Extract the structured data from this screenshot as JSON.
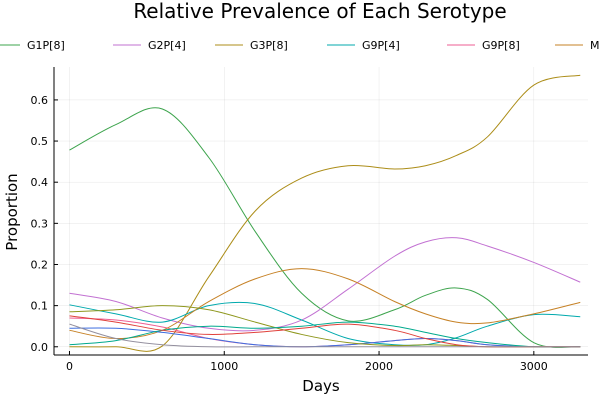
{
  "chart_data": {
    "type": "line",
    "title": "Relative Prevalence of Each Serotype",
    "xlabel": "Days",
    "ylabel": "Proportion",
    "xlim": [
      -100,
      3350
    ],
    "ylim": [
      -0.02,
      0.68
    ],
    "xticks": [
      0,
      1000,
      2000,
      3000
    ],
    "yticks": [
      0.0,
      0.1,
      0.2,
      0.3,
      0.4,
      0.5,
      0.6
    ],
    "grid": true,
    "legend": "top, horizontal",
    "series": [
      {
        "name": "G1P[8]",
        "color": "#3da44d",
        "points": [
          [
            0,
            0.478
          ],
          [
            300,
            0.54
          ],
          [
            600,
            0.578
          ],
          [
            900,
            0.46
          ],
          [
            1200,
            0.28
          ],
          [
            1500,
            0.13
          ],
          [
            1800,
            0.063
          ],
          [
            2100,
            0.09
          ],
          [
            2300,
            0.125
          ],
          [
            2500,
            0.143
          ],
          [
            2700,
            0.115
          ],
          [
            3000,
            0.01
          ],
          [
            3300,
            0.0
          ]
        ]
      },
      {
        "name": "G2P[4]",
        "color": "#c271d2",
        "points": [
          [
            0,
            0.13
          ],
          [
            300,
            0.11
          ],
          [
            600,
            0.07
          ],
          [
            900,
            0.045
          ],
          [
            1200,
            0.04
          ],
          [
            1500,
            0.065
          ],
          [
            1800,
            0.14
          ],
          [
            2100,
            0.22
          ],
          [
            2300,
            0.255
          ],
          [
            2500,
            0.265
          ],
          [
            2700,
            0.245
          ],
          [
            3000,
            0.205
          ],
          [
            3300,
            0.157
          ]
        ]
      },
      {
        "name": "G3P[8]",
        "color": "#ac8d18",
        "points": [
          [
            0,
            0.0
          ],
          [
            300,
            0.0
          ],
          [
            600,
            0.002
          ],
          [
            900,
            0.17
          ],
          [
            1200,
            0.33
          ],
          [
            1500,
            0.41
          ],
          [
            1800,
            0.44
          ],
          [
            2100,
            0.432
          ],
          [
            2300,
            0.44
          ],
          [
            2500,
            0.465
          ],
          [
            2700,
            0.51
          ],
          [
            3000,
            0.636
          ],
          [
            3300,
            0.66
          ]
        ]
      },
      {
        "name": "G9P[4]",
        "color": "#00a9ad",
        "points": [
          [
            0,
            0.102
          ],
          [
            300,
            0.08
          ],
          [
            600,
            0.06
          ],
          [
            900,
            0.1
          ],
          [
            1200,
            0.105
          ],
          [
            1500,
            0.065
          ],
          [
            1800,
            0.02
          ],
          [
            2100,
            0.005
          ],
          [
            2300,
            0.005
          ],
          [
            2500,
            0.022
          ],
          [
            2700,
            0.05
          ],
          [
            3000,
            0.078
          ],
          [
            3300,
            0.073
          ]
        ]
      },
      {
        "name": "G9P[8]",
        "color": "#ed5e93",
        "points": [
          [
            0,
            0.07
          ],
          [
            300,
            0.065
          ],
          [
            600,
            0.048
          ],
          [
            900,
            0.02
          ],
          [
            1200,
            0.005
          ],
          [
            1500,
            0.0
          ],
          [
            1800,
            0.005
          ],
          [
            2100,
            0.015
          ],
          [
            2300,
            0.02
          ],
          [
            2500,
            0.015
          ],
          [
            2700,
            0.005
          ],
          [
            3000,
            0.0
          ],
          [
            3300,
            0.0
          ]
        ]
      },
      {
        "name": "M",
        "color": "#c68125",
        "points": [
          [
            0,
            0.04
          ],
          [
            300,
            0.02
          ],
          [
            600,
            0.04
          ],
          [
            900,
            0.11
          ],
          [
            1200,
            0.165
          ],
          [
            1500,
            0.19
          ],
          [
            1800,
            0.165
          ],
          [
            2100,
            0.11
          ],
          [
            2300,
            0.08
          ],
          [
            2500,
            0.06
          ],
          [
            2700,
            0.058
          ],
          [
            3000,
            0.08
          ],
          [
            3300,
            0.108
          ]
        ]
      },
      {
        "name": "",
        "color": "#3e6ee0",
        "points": [
          [
            0,
            0.045
          ],
          [
            300,
            0.045
          ],
          [
            600,
            0.035
          ],
          [
            900,
            0.02
          ],
          [
            1200,
            0.005
          ],
          [
            1500,
            0.0
          ],
          [
            1800,
            0.005
          ],
          [
            2100,
            0.015
          ],
          [
            2300,
            0.02
          ],
          [
            2500,
            0.015
          ],
          [
            2700,
            0.005
          ],
          [
            3000,
            0.0
          ],
          [
            3300,
            0.0
          ]
        ]
      },
      {
        "name": "",
        "color": "#8e971d",
        "points": [
          [
            0,
            0.085
          ],
          [
            300,
            0.09
          ],
          [
            600,
            0.1
          ],
          [
            900,
            0.09
          ],
          [
            1200,
            0.06
          ],
          [
            1500,
            0.03
          ],
          [
            1800,
            0.01
          ],
          [
            2100,
            0.003
          ],
          [
            2300,
            0.005
          ],
          [
            2500,
            0.003
          ],
          [
            2700,
            0.0
          ],
          [
            3000,
            0.0
          ],
          [
            3300,
            0.0
          ]
        ]
      },
      {
        "name": "",
        "color": "#00a98d",
        "points": [
          [
            0,
            0.005
          ],
          [
            300,
            0.015
          ],
          [
            600,
            0.04
          ],
          [
            900,
            0.05
          ],
          [
            1200,
            0.045
          ],
          [
            1500,
            0.05
          ],
          [
            1800,
            0.06
          ],
          [
            2100,
            0.05
          ],
          [
            2300,
            0.035
          ],
          [
            2500,
            0.02
          ],
          [
            2700,
            0.01
          ],
          [
            3000,
            0.0
          ],
          [
            3300,
            0.0
          ]
        ]
      },
      {
        "name": "",
        "color": "#e0413b",
        "points": [
          [
            0,
            0.075
          ],
          [
            300,
            0.06
          ],
          [
            600,
            0.04
          ],
          [
            900,
            0.03
          ],
          [
            1200,
            0.035
          ],
          [
            1500,
            0.045
          ],
          [
            1800,
            0.055
          ],
          [
            2100,
            0.04
          ],
          [
            2300,
            0.02
          ],
          [
            2500,
            0.005
          ],
          [
            2700,
            0.0
          ],
          [
            3000,
            0.0
          ],
          [
            3300,
            0.0
          ]
        ]
      },
      {
        "name": "",
        "color": "#938f9e",
        "points": [
          [
            0,
            0.055
          ],
          [
            300,
            0.02
          ],
          [
            600,
            0.005
          ],
          [
            900,
            0.0
          ],
          [
            1200,
            0.0
          ],
          [
            1500,
            0.0
          ],
          [
            1800,
            0.0
          ],
          [
            2100,
            0.0
          ],
          [
            2300,
            0.0
          ],
          [
            2500,
            0.0
          ],
          [
            2700,
            0.0
          ],
          [
            3000,
            0.0
          ],
          [
            3300,
            0.0
          ]
        ]
      }
    ]
  }
}
